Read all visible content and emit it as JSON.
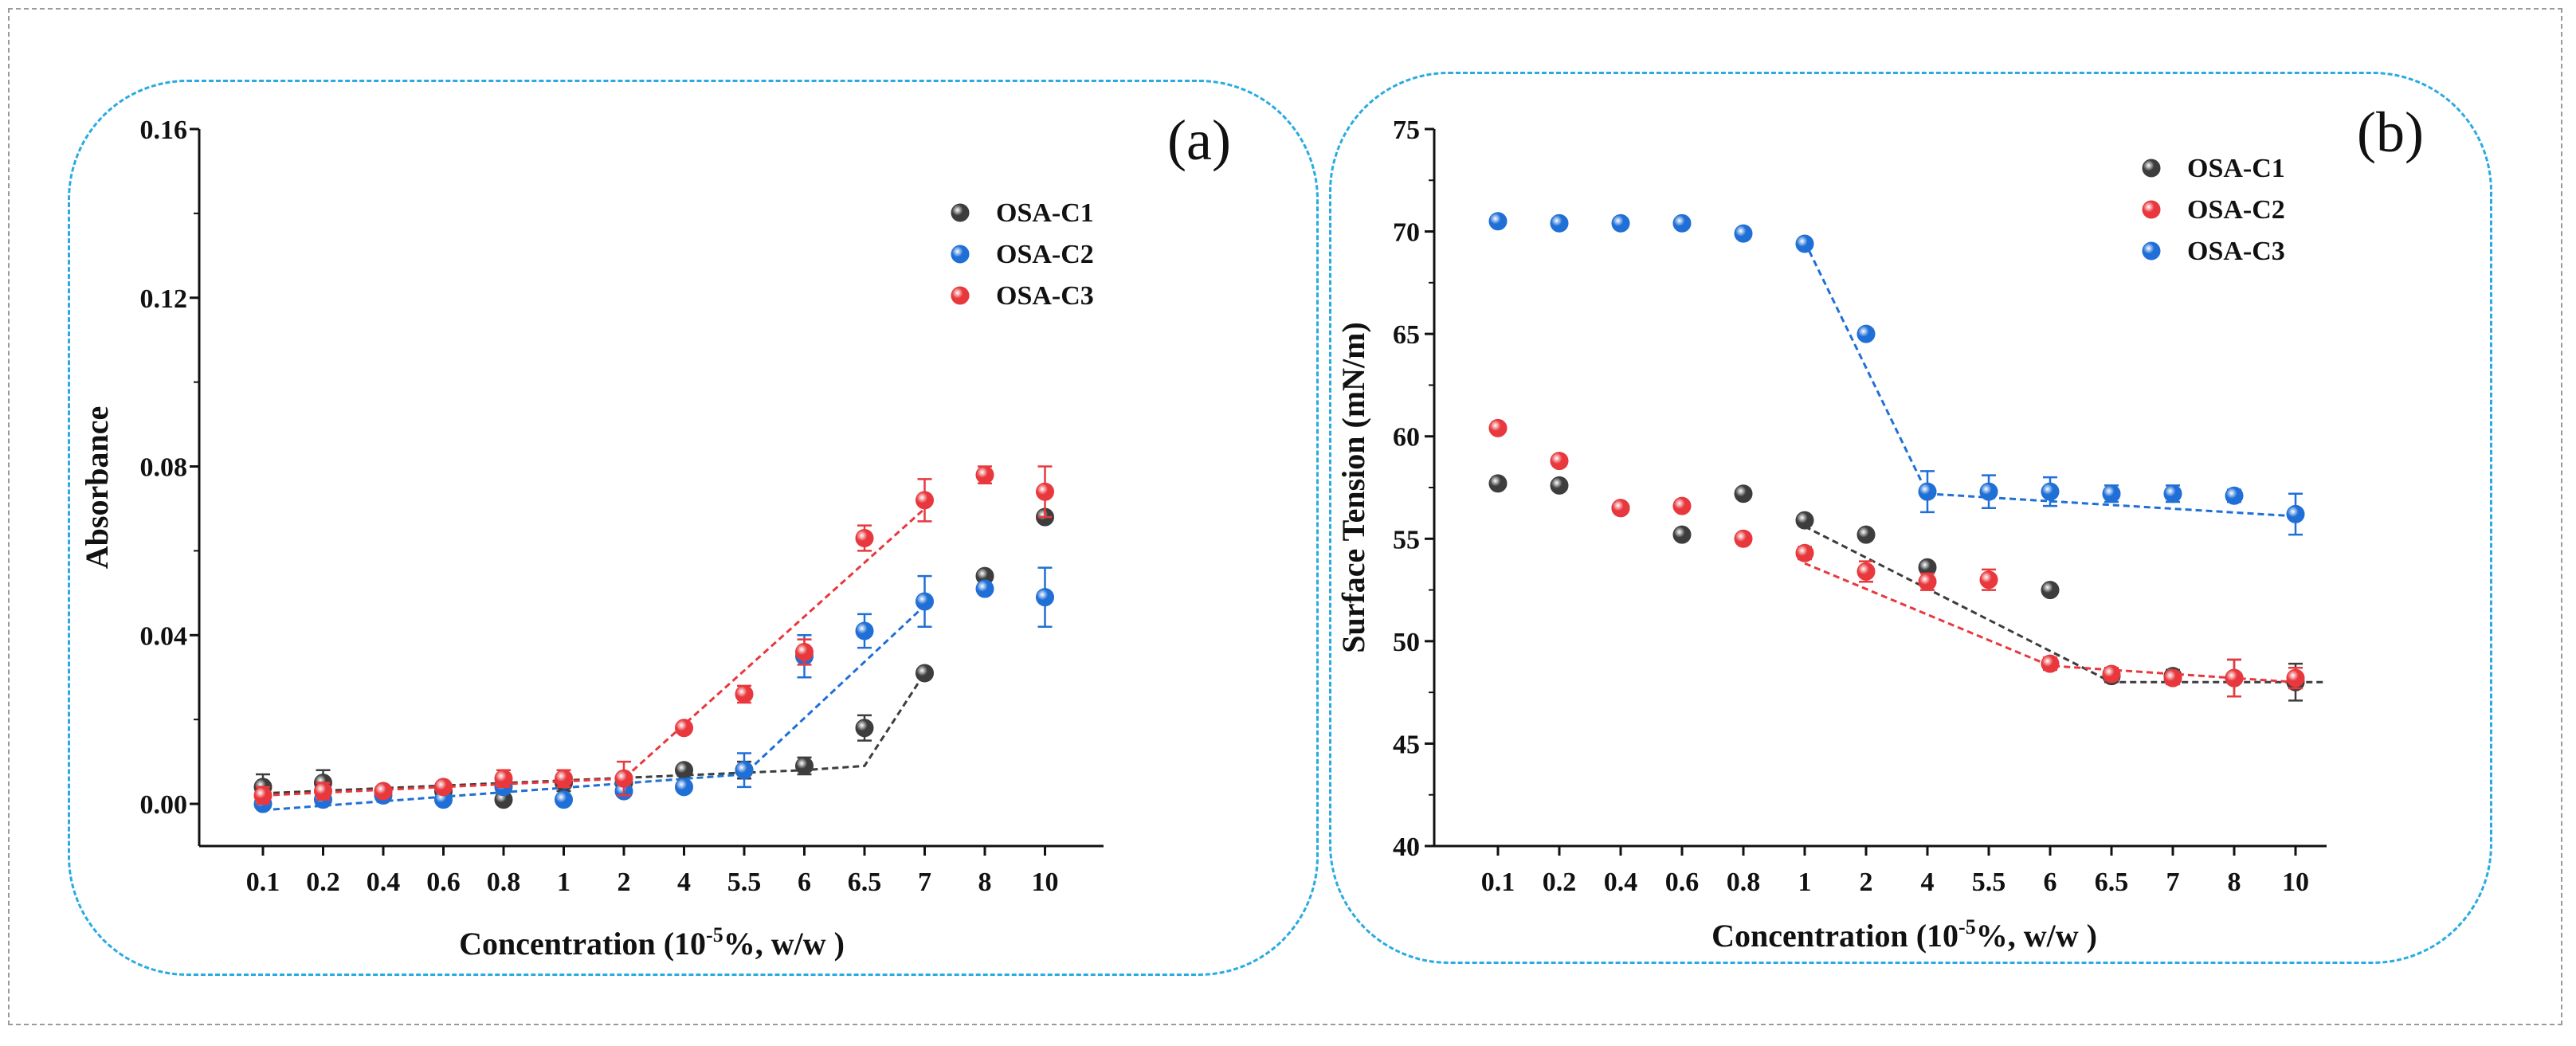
{
  "chart_data": [
    {
      "type": "scatter",
      "panel_label": "(a)",
      "xlabel": "Concentration (10",
      "xlabel_sup": "-5",
      "xlabel_tail": "%, w/w )",
      "ylabel": "Absorbance",
      "categories": [
        "0.1",
        "0.2",
        "0.4",
        "0.6",
        "0.8",
        "1",
        "2",
        "4",
        "5.5",
        "6",
        "6.5",
        "7",
        "8",
        "10"
      ],
      "yticks": [
        "0.00",
        "0.04",
        "0.08",
        "0.12",
        "0.16"
      ],
      "ylim": [
        -0.01,
        0.16
      ],
      "legend_position": "top-right",
      "series": [
        {
          "name": "OSA-C1",
          "color": "#3d3d3d",
          "values": [
            0.004,
            0.005,
            0.003,
            0.003,
            0.001,
            0.005,
            0.005,
            0.008,
            0.008,
            0.009,
            0.018,
            0.031,
            0.054,
            0.068
          ],
          "errors": [
            0.003,
            0.003,
            0.001,
            0.001,
            0.001,
            0.002,
            0.002,
            0.001,
            0.002,
            0.002,
            0.003,
            0.001,
            0.001,
            0.001
          ],
          "fit": [
            [
              0,
              0.0025
            ],
            [
              9,
              0.008
            ],
            [
              10,
              0.009
            ],
            [
              11,
              0.031
            ]
          ]
        },
        {
          "name": "OSA-C2",
          "color": "#1f6fd6",
          "values": [
            0.0,
            0.001,
            0.002,
            0.001,
            0.004,
            0.001,
            0.003,
            0.004,
            0.008,
            0.035,
            0.041,
            0.048,
            0.051,
            0.049
          ],
          "errors": [
            0.001,
            0.001,
            0.001,
            0.001,
            0.001,
            0.001,
            0.001,
            0.001,
            0.004,
            0.005,
            0.004,
            0.006,
            0.001,
            0.007
          ],
          "fit": [
            [
              0,
              -0.0015
            ],
            [
              8,
              0.007
            ],
            [
              11,
              0.047
            ]
          ]
        },
        {
          "name": "OSA-C3",
          "color": "#e8383d",
          "values": [
            0.002,
            0.003,
            0.003,
            0.004,
            0.006,
            0.006,
            0.006,
            0.018,
            0.026,
            0.036,
            0.063,
            0.072,
            0.078,
            0.074
          ],
          "errors": [
            0.002,
            0.002,
            0.001,
            0.001,
            0.002,
            0.002,
            0.004,
            0.001,
            0.002,
            0.003,
            0.003,
            0.005,
            0.002,
            0.006
          ],
          "fit": [
            [
              0,
              0.002
            ],
            [
              6,
              0.006
            ],
            [
              11,
              0.07
            ]
          ]
        }
      ]
    },
    {
      "type": "scatter",
      "panel_label": "(b)",
      "xlabel": "Concentration (10",
      "xlabel_sup": "-5",
      "xlabel_tail": "%, w/w )",
      "ylabel": "Surface Tension (mN/m)",
      "categories": [
        "0.1",
        "0.2",
        "0.4",
        "0.6",
        "0.8",
        "1",
        "2",
        "4",
        "5.5",
        "6",
        "6.5",
        "7",
        "8",
        "10"
      ],
      "yticks": [
        "40",
        "45",
        "50",
        "55",
        "60",
        "65",
        "70",
        "75"
      ],
      "ylim": [
        40,
        75
      ],
      "legend_position": "top-right",
      "series": [
        {
          "name": "OSA-C1",
          "color": "#3d3d3d",
          "values": [
            57.7,
            57.6,
            56.5,
            55.2,
            57.2,
            55.9,
            55.2,
            53.6,
            null,
            52.5,
            48.3,
            48.3,
            48.2,
            48.0
          ],
          "errors": [
            0.2,
            0.2,
            0.2,
            0.2,
            0.2,
            0.2,
            0.2,
            0.2,
            null,
            0.2,
            0.3,
            0.3,
            0.9,
            0.9
          ],
          "fit": [
            [
              5,
              55.6
            ],
            [
              10,
              48.0
            ],
            [
              13.5,
              48.0
            ]
          ]
        },
        {
          "name": "OSA-C2",
          "color": "#e8383d",
          "values": [
            60.4,
            58.8,
            56.5,
            56.6,
            55.0,
            54.3,
            53.4,
            52.9,
            53.0,
            48.9,
            48.4,
            48.2,
            48.2,
            48.2
          ],
          "errors": [
            0.2,
            0.2,
            0.2,
            0.2,
            0.2,
            0.3,
            0.5,
            0.4,
            0.5,
            0.3,
            0.3,
            0.3,
            0.9,
            0.5
          ],
          "fit": [
            [
              5,
              53.8
            ],
            [
              9,
              48.8
            ],
            [
              13,
              48.0
            ]
          ]
        },
        {
          "name": "OSA-C3",
          "color": "#1f6fd6",
          "values": [
            70.5,
            70.4,
            70.4,
            70.4,
            69.9,
            69.4,
            65.0,
            57.3,
            57.3,
            57.3,
            57.2,
            57.2,
            57.1,
            56.2
          ],
          "errors": [
            0.2,
            0.2,
            0.2,
            0.2,
            0.2,
            0.2,
            0.2,
            1.0,
            0.8,
            0.7,
            0.4,
            0.4,
            0.3,
            1.0
          ],
          "fit": [
            [
              5,
              69.5
            ],
            [
              7,
              57.2
            ],
            [
              13,
              56.1
            ]
          ]
        }
      ]
    }
  ]
}
